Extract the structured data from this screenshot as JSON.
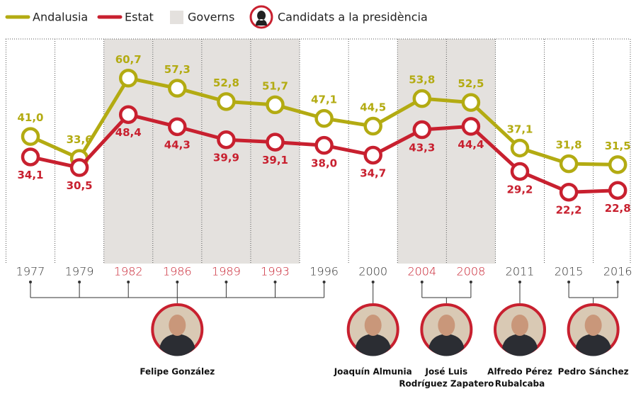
{
  "chart_data": {
    "type": "line",
    "categories": [
      "1977",
      "1979",
      "1982",
      "1986",
      "1989",
      "1993",
      "1996",
      "2000",
      "2004",
      "2008",
      "2011",
      "2015",
      "2016"
    ],
    "governs": [
      false,
      false,
      true,
      true,
      true,
      true,
      false,
      false,
      true,
      true,
      false,
      false,
      false
    ],
    "ylim": [
      0,
      78
    ],
    "series": [
      {
        "name": "Andalusia",
        "color": "#b3ab12",
        "values": [
          41.0,
          33.6,
          60.7,
          57.3,
          52.8,
          51.7,
          47.1,
          44.5,
          53.8,
          52.5,
          37.1,
          31.8,
          31.5
        ],
        "value_labels": [
          "41,0",
          "33,6",
          "60,7",
          "57,3",
          "52,8",
          "51,7",
          "47,1",
          "44,5",
          "53,8",
          "52,5",
          "37,1",
          "31,8",
          "31,5"
        ]
      },
      {
        "name": "Estat",
        "color": "#c8202f",
        "values": [
          34.1,
          30.5,
          48.4,
          44.3,
          39.9,
          39.1,
          38.0,
          34.7,
          43.3,
          44.4,
          29.2,
          22.2,
          22.8
        ],
        "value_labels": [
          "34,1",
          "30,5",
          "48,4",
          "44,3",
          "39,9",
          "39,1",
          "38,0",
          "34,7",
          "43,3",
          "44,4",
          "29,2",
          "22,2",
          "22,8"
        ]
      }
    ],
    "legend_governs": "Governs",
    "legend_candidates": "Candidats a la presidència",
    "candidates": [
      {
        "name": [
          "Felipe González"
        ],
        "first": "1977",
        "last": "1996"
      },
      {
        "name": [
          "Joaquín Almunia"
        ],
        "first": "2000",
        "last": "2000"
      },
      {
        "name": [
          "José Luis",
          "Rodríguez Zapatero"
        ],
        "first": "2004",
        "last": "2008"
      },
      {
        "name": [
          "Alfredo Pérez",
          "Rubalcaba"
        ],
        "first": "2011",
        "last": "2011"
      },
      {
        "name": [
          "Pedro Sánchez"
        ],
        "first": "2015",
        "last": "2016"
      }
    ]
  }
}
